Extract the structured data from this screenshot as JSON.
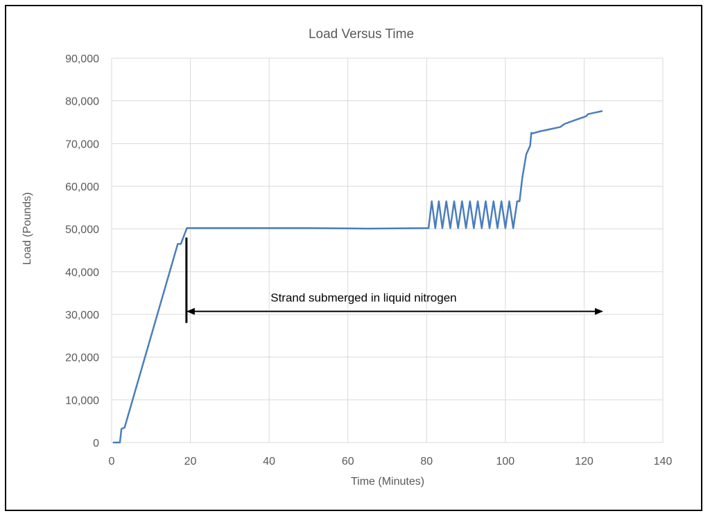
{
  "chart_data": {
    "type": "line",
    "title": "Load Versus Time",
    "xlabel": "Time (Minutes)",
    "ylabel": "Load (Pounds)",
    "xlim": [
      0,
      140
    ],
    "ylim": [
      0,
      90000
    ],
    "x_ticks": [
      0,
      20,
      40,
      60,
      80,
      100,
      120,
      140
    ],
    "y_ticks": [
      0,
      10000,
      20000,
      30000,
      40000,
      50000,
      60000,
      70000,
      80000,
      90000
    ],
    "x_tick_labels": [
      "0",
      "20",
      "40",
      "60",
      "80",
      "100",
      "120",
      "140"
    ],
    "y_tick_labels": [
      "0",
      "10,000",
      "20,000",
      "30,000",
      "40,000",
      "50,000",
      "60,000",
      "70,000",
      "80,000",
      "90,000"
    ],
    "grid": true,
    "legend": "none",
    "series_color": "#4a7ebb",
    "series": [
      {
        "x": [
          0.5,
          2.1,
          2.5,
          3.3,
          16.8,
          17.6,
          19.1,
          20.5,
          30,
          50,
          65,
          80.5,
          81.3,
          82.2,
          83.1,
          84.0,
          85.0,
          86.0,
          87.0,
          88.0,
          89.0,
          90.0,
          91.0,
          92.0,
          93.0,
          94.0,
          95.0,
          96.0,
          97.0,
          98.0,
          99.0,
          100.0,
          101.0,
          102.0,
          103.0,
          103.6,
          104.3,
          105.3,
          106.3,
          106.6,
          107.0,
          108.5,
          109.0,
          110.5,
          111.0,
          114.0,
          115.0,
          118.0,
          120.5,
          121.0,
          123.0,
          124.5
        ],
        "y": [
          0,
          0,
          3200,
          3500,
          46500,
          46500,
          50200,
          50200,
          50200,
          50200,
          50100,
          50200,
          56500,
          50200,
          56500,
          50200,
          56500,
          50200,
          56500,
          50200,
          56500,
          50200,
          56500,
          50200,
          56500,
          50200,
          56500,
          50200,
          56500,
          50200,
          56500,
          50200,
          56500,
          50200,
          56500,
          56500,
          62000,
          67500,
          69500,
          72500,
          72400,
          72800,
          72900,
          73200,
          73300,
          73900,
          74600,
          75600,
          76400,
          76900,
          77300,
          77600
        ]
      }
    ],
    "annotation": {
      "text": "Strand submerged in liquid nitrogen",
      "marker_x": 19,
      "marker_y_range": [
        28000,
        48000
      ],
      "arrow_y": 30700,
      "arrow_x_range": [
        19,
        124.5
      ]
    }
  }
}
